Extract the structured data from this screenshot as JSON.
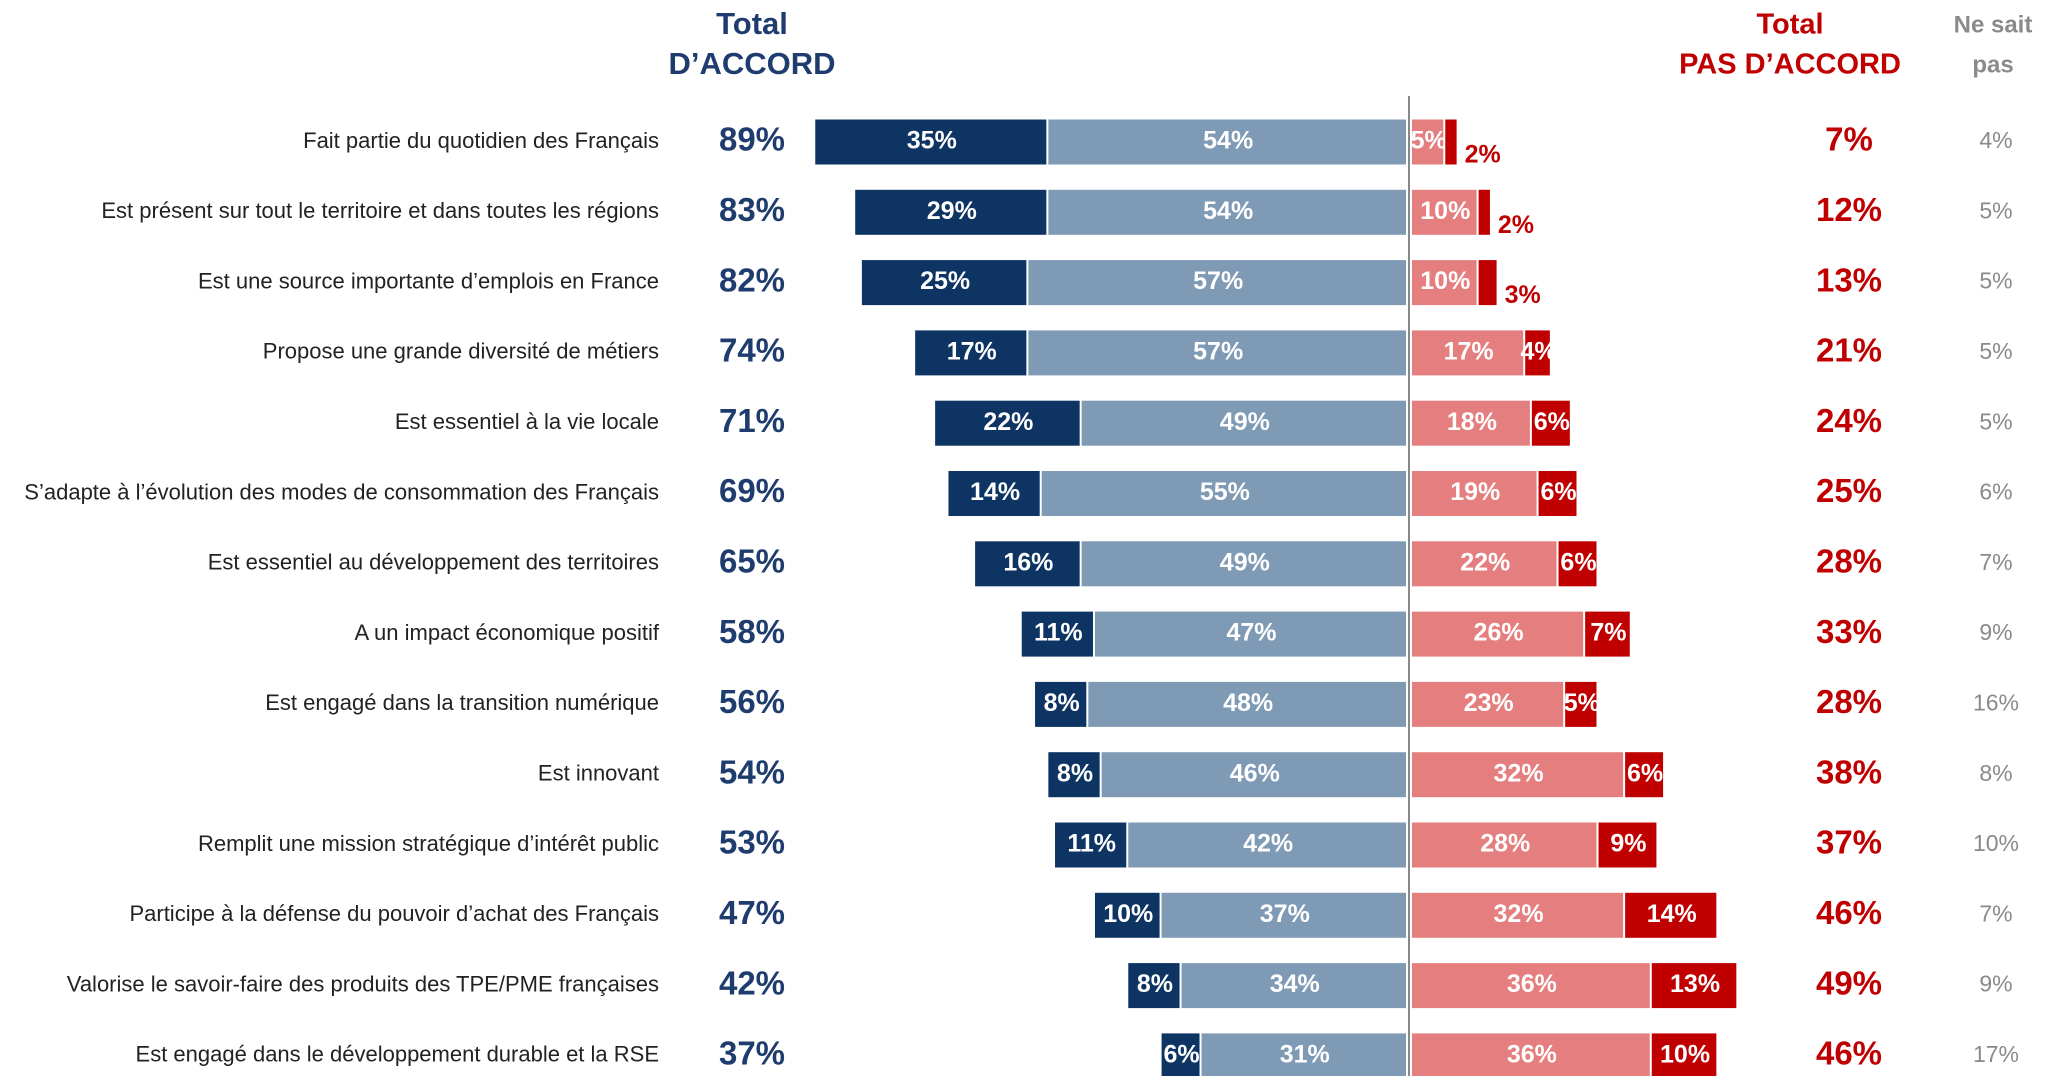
{
  "chart_data": {
    "type": "diverging_bar",
    "header_agree": [
      "Total",
      "D’ACCORD"
    ],
    "header_disagree": [
      "Total",
      "PAS D’ACCORD"
    ],
    "header_dk": [
      "Ne sait",
      "pas"
    ],
    "categories": [
      "Fait partie du quotidien des Français",
      "Est présent sur tout le territoire et dans toutes les régions",
      "Est une source importante d’emplois en France",
      "Propose une grande diversité de métiers",
      "Est essentiel à la vie locale",
      "S’adapte à l’évolution des modes de consommation des Français",
      "Est essentiel au développement des territoires",
      "A un impact économique positif",
      "Est engagé dans la transition numérique",
      "Est innovant",
      "Remplit une mission stratégique d’intérêt public",
      "Participe à la défense du pouvoir d’achat des Français",
      "Valorise le savoir-faire des produits des TPE/PME françaises",
      "Est engagé dans le développement durable et la RSE"
    ],
    "total_agree": {
      "values": [
        89,
        83,
        82,
        74,
        71,
        69,
        65,
        58,
        56,
        54,
        53,
        47,
        42,
        37
      ],
      "value_labels": [
        "89%",
        "83%",
        "82%",
        "74%",
        "71%",
        "69%",
        "65%",
        "58%",
        "56%",
        "54%",
        "53%",
        "47%",
        "42%",
        "37%"
      ],
      "color": "#1f3c6e"
    },
    "total_disagree": {
      "values": [
        7,
        12,
        13,
        21,
        24,
        25,
        28,
        33,
        28,
        38,
        37,
        46,
        49,
        46
      ],
      "value_labels": [
        "7%",
        "12%",
        "13%",
        "21%",
        "24%",
        "25%",
        "28%",
        "33%",
        "28%",
        "38%",
        "37%",
        "46%",
        "49%",
        "46%"
      ],
      "color": "#c00000"
    },
    "dont_know": {
      "values": [
        4,
        5,
        5,
        5,
        5,
        6,
        7,
        9,
        16,
        8,
        10,
        7,
        9,
        17
      ],
      "value_labels": [
        "4%",
        "5%",
        "5%",
        "5%",
        "5%",
        "6%",
        "7%",
        "9%",
        "16%",
        "8%",
        "10%",
        "7%",
        "9%",
        "17%"
      ],
      "color": "#8a8a8a"
    },
    "series": [
      {
        "side": "left",
        "color": "#0d3463",
        "values": [
          35,
          29,
          25,
          17,
          22,
          14,
          16,
          11,
          8,
          8,
          11,
          10,
          8,
          6
        ],
        "value_labels": [
          "35%",
          "29%",
          "25%",
          "17%",
          "22%",
          "14%",
          "16%",
          "11%",
          "8%",
          "8%",
          "11%",
          "10%",
          "8%",
          "6%"
        ]
      },
      {
        "side": "left",
        "color": "#7f9ab5",
        "values": [
          54,
          54,
          57,
          57,
          49,
          55,
          49,
          47,
          48,
          46,
          42,
          37,
          34,
          31
        ],
        "value_labels": [
          "54%",
          "54%",
          "57%",
          "57%",
          "49%",
          "55%",
          "49%",
          "47%",
          "48%",
          "46%",
          "42%",
          "37%",
          "34%",
          "31%"
        ]
      },
      {
        "side": "right",
        "color": "#e57f7f",
        "values": [
          5,
          10,
          10,
          17,
          18,
          19,
          22,
          26,
          23,
          32,
          28,
          32,
          36,
          36
        ],
        "value_labels": [
          "5%",
          "10%",
          "10%",
          "17%",
          "18%",
          "19%",
          "22%",
          "26%",
          "23%",
          "32%",
          "28%",
          "32%",
          "36%",
          "36%"
        ]
      },
      {
        "side": "right",
        "color": "#c00000",
        "values": [
          2,
          2,
          3,
          4,
          6,
          6,
          6,
          7,
          5,
          6,
          9,
          14,
          13,
          10
        ],
        "value_labels": [
          "2%",
          "2%",
          "3%",
          "4%",
          "6%",
          "6%",
          "6%",
          "7%",
          "5%",
          "6%",
          "9%",
          "14%",
          "13%",
          "10%"
        ]
      }
    ]
  }
}
